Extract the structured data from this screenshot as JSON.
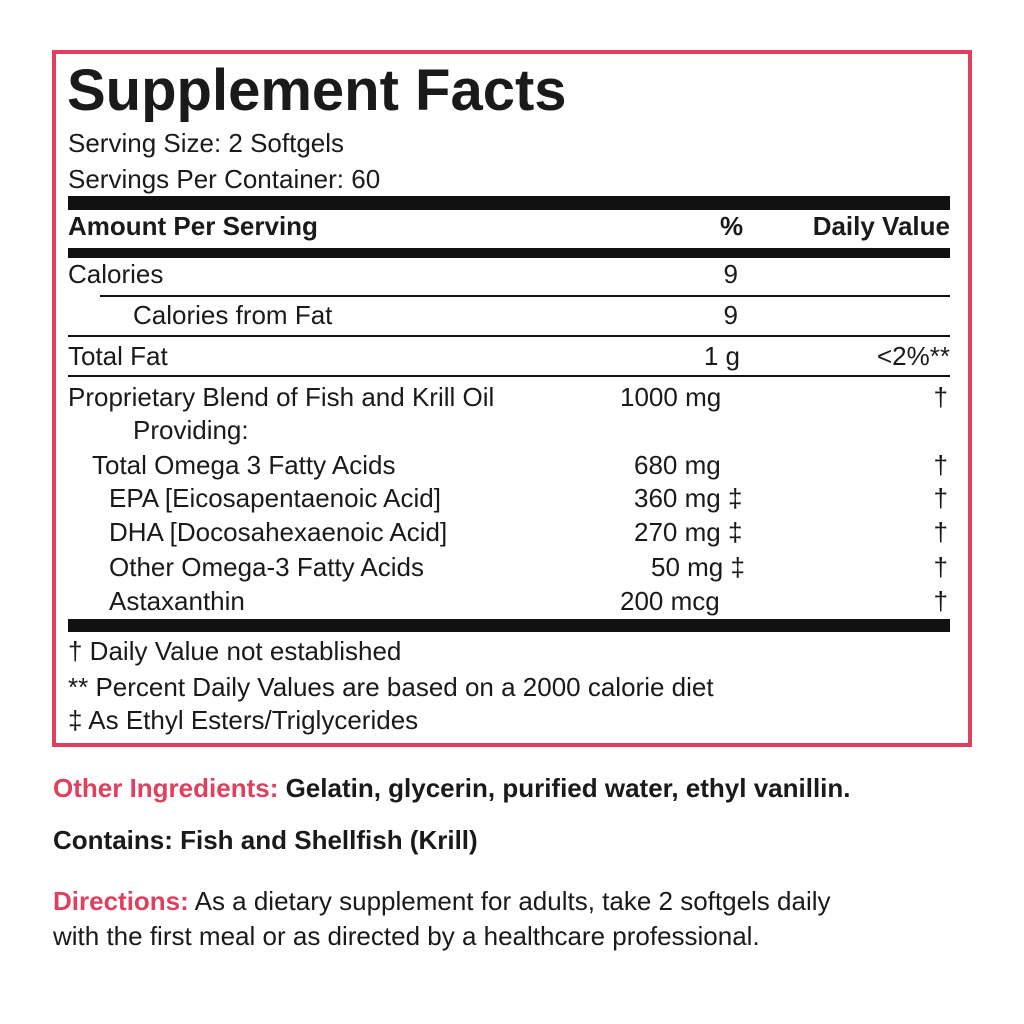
{
  "colors": {
    "accent": "#e0405f",
    "text": "#1a1a1a"
  },
  "panel": {
    "title": "Supplement Facts",
    "serving_size": "Serving Size: 2 Softgels",
    "servings_per_container": "Servings Per Container: 60",
    "header": {
      "amount": "Amount Per Serving",
      "percent": "%",
      "daily_value": "Daily Value"
    },
    "rows": [
      {
        "name": "Calories",
        "amount": "9",
        "dv": ""
      },
      {
        "name": "Calories from Fat",
        "amount": "9",
        "dv": ""
      },
      {
        "name": "Total Fat",
        "amount": "1 g",
        "dv": "<2%**"
      },
      {
        "name": "Proprietary Blend of Fish and Krill Oil",
        "amount": "1000 mg",
        "dv": "†"
      },
      {
        "name": "Providing:",
        "amount": "",
        "dv": ""
      },
      {
        "name": "Total Omega 3 Fatty Acids",
        "amount": "680 mg",
        "dv": "†"
      },
      {
        "name": "EPA [Eicosapentaenoic Acid]",
        "amount": "360 mg ‡",
        "dv": "†"
      },
      {
        "name": "DHA [Docosahexaenoic Acid]",
        "amount": "270 mg ‡",
        "dv": "†"
      },
      {
        "name": "Other Omega-3 Fatty Acids",
        "amount": "50 mg ‡",
        "dv": "†"
      },
      {
        "name": "Astaxanthin",
        "amount": "200 mcg",
        "dv": "†"
      }
    ],
    "footnotes": [
      "† Daily Value not established",
      "** Percent Daily Values are based on a 2000 calorie diet",
      "‡ As Ethyl Esters/Triglycerides"
    ]
  },
  "other_ingredients": {
    "label": "Other Ingredients:",
    "text": " Gelatin, glycerin, purified water, ethyl vanillin."
  },
  "contains": "Contains: Fish and Shellfish (Krill)",
  "directions": {
    "label": "Directions:",
    "line1": " As a dietary supplement for adults, take 2 softgels daily",
    "line2": "with the first meal or as directed by a healthcare professional."
  }
}
